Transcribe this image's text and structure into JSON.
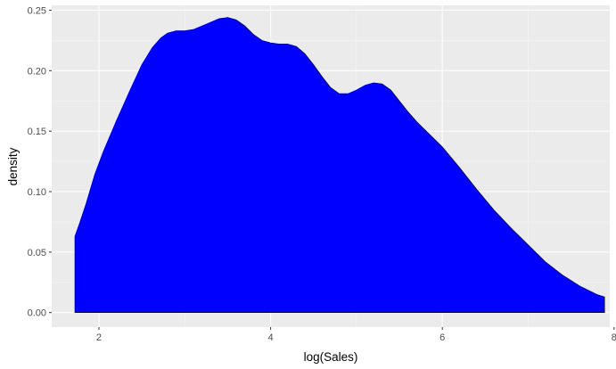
{
  "chart_data": {
    "type": "area",
    "xlabel": "log(Sales)",
    "ylabel": "density",
    "xlim": [
      1.45,
      7.95
    ],
    "ylim": [
      -0.012,
      0.254
    ],
    "x_ticks": [
      2,
      4,
      6,
      8
    ],
    "x_tick_labels": [
      "2",
      "4",
      "6",
      "8"
    ],
    "y_ticks": [
      0,
      0.05,
      0.1,
      0.15,
      0.2,
      0.25
    ],
    "y_tick_labels": [
      "0.00",
      "0.05",
      "0.10",
      "0.15",
      "0.20",
      "0.25"
    ],
    "grid": true,
    "legend": "none",
    "colors": {
      "fill": "#0000ff",
      "outline": "#000000",
      "panel_background": "#ebebeb",
      "grid_major": "#ffffff",
      "grid_minor": "#f5f5f5",
      "tick_text": "#4d4d4d"
    },
    "series": [
      {
        "x": [
          1.72,
          1.78,
          1.85,
          1.95,
          2.05,
          2.2,
          2.35,
          2.5,
          2.62,
          2.72,
          2.8,
          2.9,
          3.0,
          3.1,
          3.2,
          3.3,
          3.4,
          3.5,
          3.6,
          3.7,
          3.8,
          3.9,
          4.0,
          4.1,
          4.2,
          4.3,
          4.4,
          4.5,
          4.6,
          4.7,
          4.8,
          4.9,
          5.0,
          5.1,
          5.2,
          5.3,
          5.4,
          5.5,
          5.6,
          5.7,
          5.8,
          5.9,
          6.0,
          6.2,
          6.4,
          6.6,
          6.8,
          7.0,
          7.2,
          7.4,
          7.6,
          7.8,
          7.89
        ],
        "y": [
          0.063,
          0.075,
          0.09,
          0.114,
          0.133,
          0.158,
          0.182,
          0.205,
          0.219,
          0.227,
          0.231,
          0.233,
          0.233,
          0.234,
          0.237,
          0.24,
          0.243,
          0.244,
          0.242,
          0.237,
          0.23,
          0.225,
          0.223,
          0.222,
          0.222,
          0.22,
          0.214,
          0.205,
          0.195,
          0.186,
          0.181,
          0.181,
          0.184,
          0.188,
          0.19,
          0.189,
          0.184,
          0.175,
          0.166,
          0.158,
          0.151,
          0.144,
          0.137,
          0.12,
          0.102,
          0.085,
          0.07,
          0.056,
          0.042,
          0.031,
          0.022,
          0.015,
          0.013
        ]
      }
    ]
  }
}
